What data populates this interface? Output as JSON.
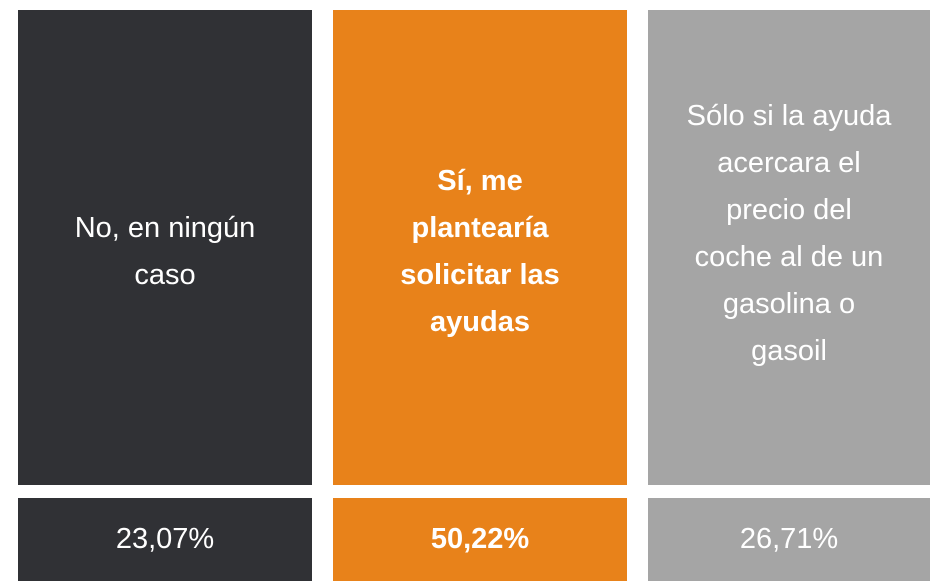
{
  "cards": [
    {
      "label_lines": [
        "No, en ningún",
        "caso"
      ],
      "value": "23,07%"
    },
    {
      "label_lines": [
        "Sí, me",
        "plantearía",
        "solicitar las",
        "ayudas"
      ],
      "value": "50,22%"
    },
    {
      "label_lines": [
        "Sólo si la ayuda",
        "acercara el",
        "precio del",
        "coche al de un",
        "gasolina o",
        "gasoil"
      ],
      "value": "26,71%"
    }
  ]
}
